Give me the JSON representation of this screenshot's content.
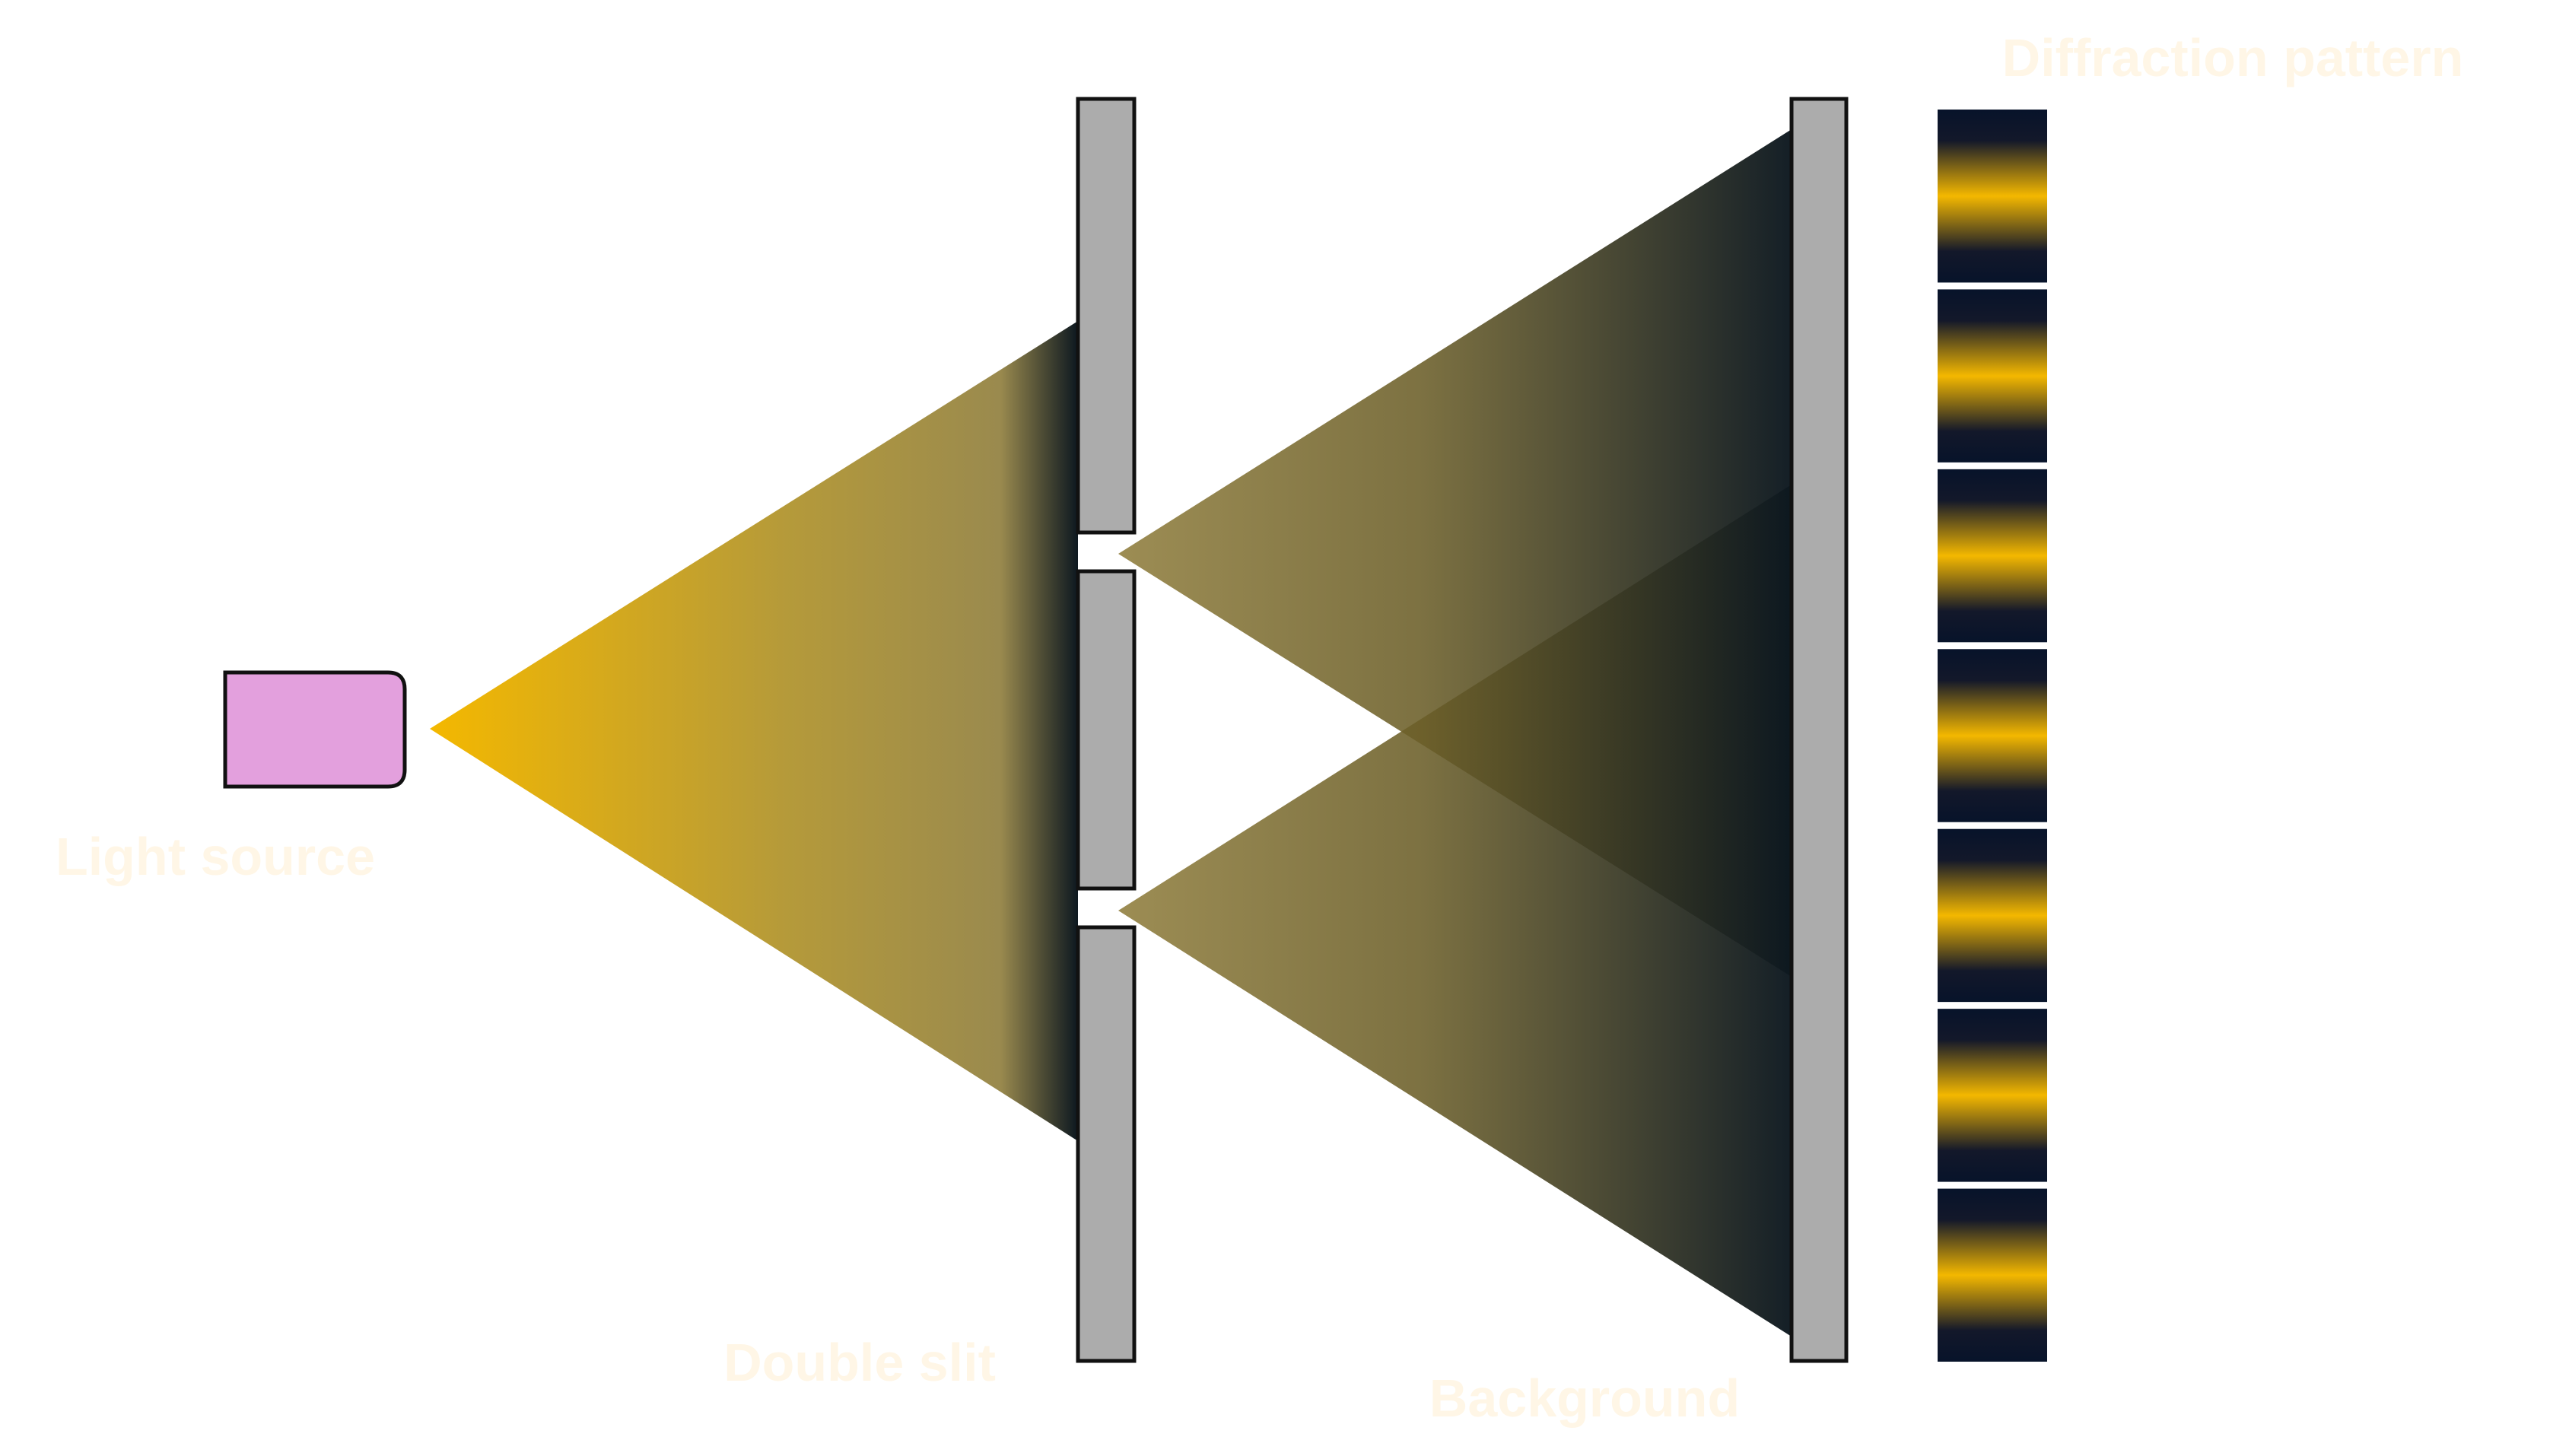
{
  "labels": {
    "light_source": "Light source",
    "double_slit": "Double slit",
    "background": "Background",
    "diffraction_pattern": "Diffraction pattern"
  },
  "colors": {
    "label_text": "#fff6e6",
    "light_source_fill": "#e3a0dd",
    "light_source_stroke": "#111111",
    "barrier_fill": "#acacac",
    "barrier_stroke": "#111111",
    "beam_bright": "#f4b800",
    "beam_mid": "#9a8a4e",
    "beam_dark": "#0d1820",
    "pattern_bright": "#f4b800",
    "pattern_dark": "#07132a",
    "pattern_separator": "#ffffff"
  },
  "diagram": {
    "pattern_fringe_count": 7
  }
}
